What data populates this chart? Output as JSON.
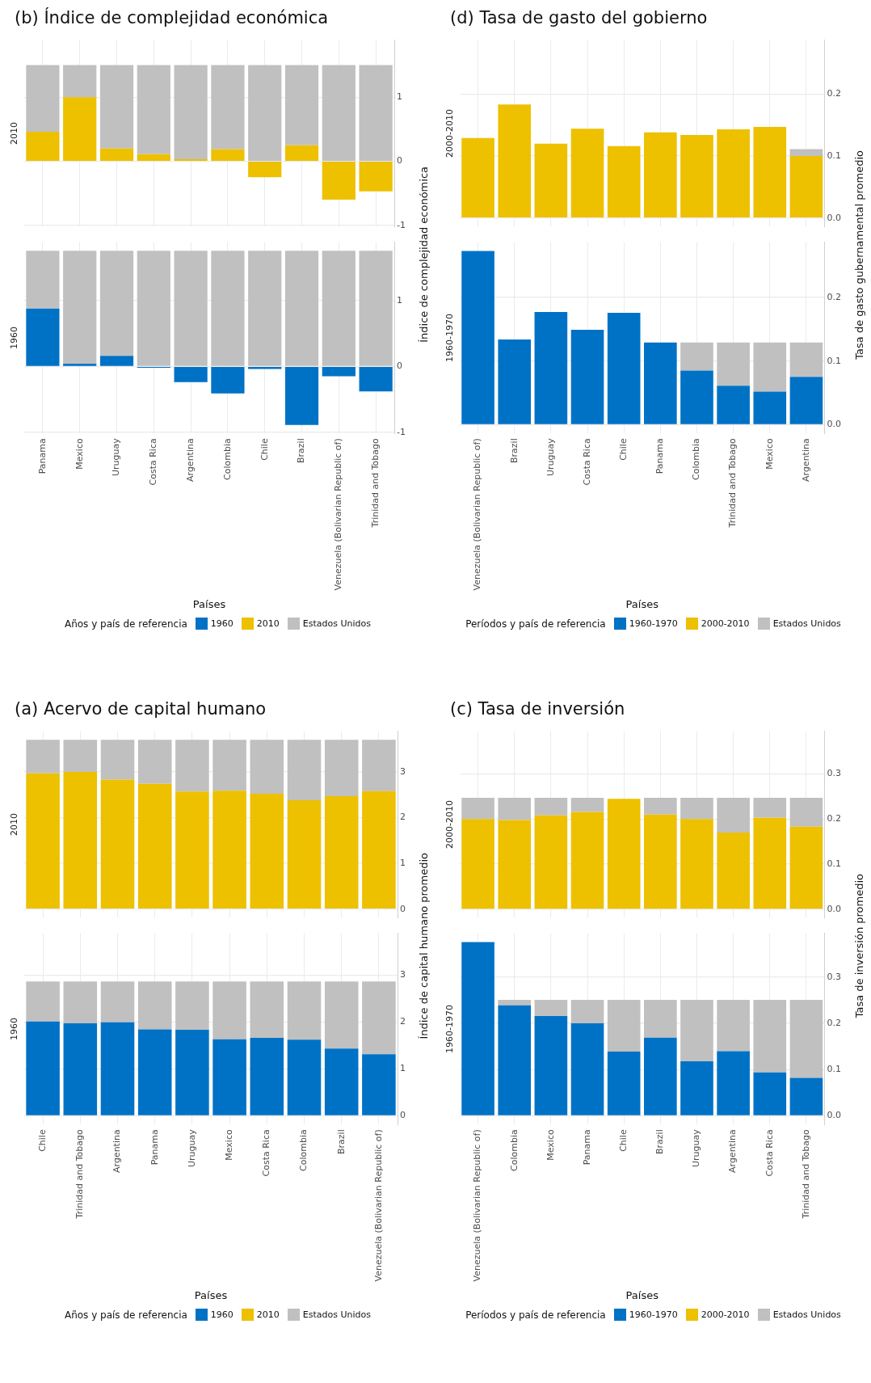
{
  "chart_data": [
    {
      "type": "bar",
      "title": "(a) Acervo de capital humano",
      "subtitle": "2010",
      "legend": "bottom",
      "stacked": true,
      "grid": true,
      "tick_labels": "y",
      "categories": [
        null,
        null,
        null,
        null,
        null,
        null,
        null,
        null,
        null,
        null
      ],
      "ylim": [
        -0.19,
        3.89
      ],
      "yticks": [
        0,
        1,
        2,
        3
      ],
      "series": [
        {
          "name": "2010",
          "color": "#edc000",
          "values": [
            2.97,
            3.0,
            2.83,
            2.74,
            2.57,
            2.59,
            2.52,
            2.38,
            2.47,
            2.58
          ]
        },
        {
          "color": "#c0c0c0",
          "values": [
            0.73,
            0.7,
            0.87,
            0.96,
            1.13,
            1.11,
            1.18,
            1.32,
            1.23,
            1.12
          ]
        }
      ]
    },
    {
      "type": "bar",
      "subtitle": "1960",
      "xlabel": "Países",
      "ylabel": "Índice de capital humano promedio",
      "legend_title": "Años y país de referencia",
      "legend": "bottom",
      "stacked": true,
      "grid": true,
      "categories": [
        "Chile",
        "Trinidad and Tobago",
        "Argentina",
        "Panama",
        "Uruguay",
        "Mexico",
        "Costa Rica",
        "Colombia",
        "Brazil",
        "Venezuela (Bolivarian Republic of)"
      ],
      "ylim": [
        -0.19,
        3.89
      ],
      "yticks": [
        0,
        1,
        2,
        3
      ],
      "series": [
        {
          "name": "1960",
          "color": "#0072c6",
          "values": [
            2.01,
            1.97,
            1.99,
            1.84,
            1.83,
            1.63,
            1.66,
            1.62,
            1.43,
            1.31
          ]
        },
        {
          "name": "Estados Unidos",
          "color": "#c0c0c0",
          "values": [
            0.85,
            0.89,
            0.87,
            1.02,
            1.03,
            1.23,
            1.2,
            1.24,
            1.43,
            1.55
          ]
        }
      ]
    },
    {
      "type": "bar",
      "title": "(b) Índice de complejidad económica",
      "subtitle": "2010",
      "legend": "bottom",
      "stacked": true,
      "grid": true,
      "tick_labels": "y",
      "categories": [
        null,
        null,
        null,
        null,
        null,
        null,
        null,
        null,
        null,
        null
      ],
      "ylim": [
        -1.02,
        1.89
      ],
      "yticks": [
        -1,
        0,
        1
      ],
      "series": [
        {
          "name": "2010",
          "color": "#edc000",
          "values": [
            0.46,
            1.0,
            0.2,
            0.11,
            0.03,
            0.19,
            -0.25,
            0.25,
            -0.6,
            -0.47
          ]
        },
        {
          "color": "#c0c0c0",
          "values": [
            1.04,
            0.5,
            1.3,
            1.39,
            1.47,
            1.31,
            1.5,
            1.25,
            1.5,
            1.5
          ]
        }
      ]
    },
    {
      "type": "bar",
      "subtitle": "1960",
      "xlabel": "Países",
      "ylabel": "Índice de complejidad económica",
      "legend_title": "Años y país de referencia",
      "legend": "bottom",
      "stacked": true,
      "grid": true,
      "categories": [
        "Panama",
        "Mexico",
        "Uruguay",
        "Costa Rica",
        "Argentina",
        "Colombia",
        "Chile",
        "Brazil",
        "Venezuela (Bolivarian Republic of)",
        "Trinidad and Tobago"
      ],
      "ylim": [
        -1.02,
        1.89
      ],
      "yticks": [
        -1,
        0,
        1
      ],
      "series": [
        {
          "name": "1960",
          "color": "#0072c6",
          "values": [
            0.88,
            0.04,
            0.16,
            -0.02,
            -0.24,
            -0.41,
            -0.04,
            -0.89,
            -0.15,
            -0.38
          ]
        },
        {
          "name": "Estados Unidos",
          "color": "#c0c0c0",
          "values": [
            0.88,
            1.72,
            1.6,
            1.76,
            1.76,
            1.76,
            1.76,
            1.76,
            1.76,
            1.76
          ]
        }
      ]
    },
    {
      "type": "bar",
      "title": "(c) Tasa de inversión",
      "subtitle": "2000-2010",
      "legend": "bottom",
      "stacked": true,
      "grid": true,
      "tick_labels": "y",
      "categories": [
        null,
        null,
        null,
        null,
        null,
        null,
        null,
        null,
        null,
        null
      ],
      "ylim": [
        -0.019,
        0.395
      ],
      "yticks": [
        {
          "value": 0,
          "label": "0.0"
        },
        {
          "value": 0.1,
          "label": "0.1"
        },
        {
          "value": 0.2,
          "label": "0.2"
        },
        {
          "value": 0.3,
          "label": "0.3"
        }
      ],
      "series": [
        {
          "name": "2000-2010",
          "color": "#edc000",
          "values": [
            0.2,
            0.198,
            0.208,
            0.216,
            0.245,
            0.21,
            0.2,
            0.17,
            0.203,
            0.183
          ]
        },
        {
          "color": "#c0c0c0",
          "values": [
            0.047,
            0.049,
            0.039,
            0.031,
            null,
            0.037,
            0.047,
            0.077,
            0.044,
            0.064
          ]
        }
      ]
    },
    {
      "type": "bar",
      "subtitle": "1960-1970",
      "xlabel": "Países",
      "ylabel": "Tasa de inversión promedio",
      "legend_title": "Períodos y país de referencia",
      "legend": "bottom",
      "stacked": true,
      "grid": true,
      "categories": [
        "Venezuela (Bolivarian Republic of)",
        "Colombia",
        "Mexico",
        "Panama",
        "Chile",
        "Brazil",
        "Uruguay",
        "Argentina",
        "Costa Rica",
        "Trinidad and Tobago"
      ],
      "ylim": [
        -0.019,
        0.395
      ],
      "yticks": [
        {
          "value": 0,
          "label": "0.0"
        },
        {
          "value": 0.1,
          "label": "0.1"
        },
        {
          "value": 0.2,
          "label": "0.2"
        },
        {
          "value": 0.3,
          "label": "0.3"
        }
      ],
      "series": [
        {
          "name": "1960-1970",
          "color": "#0072c6",
          "values": [
            0.376,
            0.239,
            0.216,
            0.2,
            0.139,
            0.169,
            0.118,
            0.14,
            0.094,
            0.082
          ]
        },
        {
          "name": "Estados Unidos",
          "color": "#c0c0c0",
          "values": [
            null,
            0.012,
            0.035,
            0.051,
            0.112,
            0.082,
            0.133,
            0.111,
            0.157,
            0.169
          ]
        }
      ]
    },
    {
      "type": "bar",
      "title": "(d) Tasa de gasto del gobierno",
      "subtitle": "2000-2010",
      "legend": "bottom",
      "stacked": true,
      "grid": true,
      "tick_labels": "y",
      "categories": [
        null,
        null,
        null,
        null,
        null,
        null,
        null,
        null,
        null,
        null
      ],
      "ylim": [
        -0.014,
        0.287
      ],
      "yticks": [
        {
          "value": 0,
          "label": "0.0"
        },
        {
          "value": 0.1,
          "label": "0.1"
        },
        {
          "value": 0.2,
          "label": "0.2"
        }
      ],
      "series": [
        {
          "name": "2000-2010",
          "color": "#edc000",
          "values": [
            0.129,
            0.183,
            0.12,
            0.144,
            0.116,
            0.138,
            0.134,
            0.143,
            0.147,
            0.1
          ]
        },
        {
          "color": "#c0c0c0",
          "values": [
            null,
            null,
            null,
            null,
            null,
            null,
            null,
            null,
            null,
            0.011
          ]
        }
      ]
    },
    {
      "type": "bar",
      "subtitle": "1960-1970",
      "xlabel": "Países",
      "ylabel": "Tasa de gasto gubernamental promedio",
      "legend_title": "Períodos y país de referencia",
      "legend": "bottom",
      "stacked": true,
      "grid": true,
      "categories": [
        "Venezuela (Bolivarian Republic of)",
        "Brazil",
        "Uruguay",
        "Costa Rica",
        "Chile",
        "Panama",
        "Colombia",
        "Trinidad and Tobago",
        "Mexico",
        "Argentina"
      ],
      "ylim": [
        -0.014,
        0.287
      ],
      "yticks": [
        {
          "value": 0,
          "label": "0.0"
        },
        {
          "value": 0.1,
          "label": "0.1"
        },
        {
          "value": 0.2,
          "label": "0.2"
        }
      ],
      "series": [
        {
          "name": "1960-1970",
          "color": "#0072c6",
          "values": [
            0.273,
            0.134,
            0.177,
            0.149,
            0.176,
            0.129,
            0.085,
            0.061,
            0.052,
            0.075
          ]
        },
        {
          "name": "Estados Unidos",
          "color": "#c0c0c0",
          "values": [
            null,
            null,
            null,
            null,
            null,
            null,
            0.044,
            0.068,
            0.077,
            0.054
          ]
        }
      ]
    }
  ]
}
